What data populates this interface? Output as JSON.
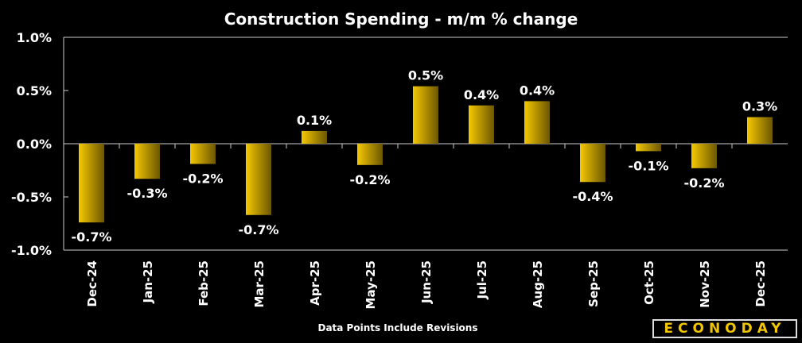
{
  "chart_data": {
    "type": "bar",
    "title": "Construction Spending - m/m % change",
    "xlabel": "",
    "ylabel": "",
    "categories": [
      "Dec-24",
      "Jan-25",
      "Feb-25",
      "Mar-25",
      "Apr-25",
      "May-25",
      "Jun-25",
      "Jul-25",
      "Aug-25",
      "Sep-25",
      "Oct-25",
      "Nov-25",
      "Dec-25"
    ],
    "values": [
      -0.74,
      -0.33,
      -0.19,
      -0.67,
      0.12,
      -0.2,
      0.54,
      0.36,
      0.4,
      -0.36,
      -0.07,
      -0.23,
      0.25
    ],
    "data_labels": [
      "-0.7%",
      "-0.3%",
      "-0.2%",
      "-0.7%",
      "0.1%",
      "-0.2%",
      "0.5%",
      "0.4%",
      "0.4%",
      "-0.4%",
      "-0.1%",
      "-0.2%",
      "0.3%"
    ],
    "ylim": [
      -1.0,
      1.0
    ],
    "yticks": [
      "1.0%",
      "0.5%",
      "0.0%",
      "-0.5%",
      "-1.0%"
    ],
    "ytick_values": [
      1.0,
      0.5,
      0.0,
      -0.5,
      -1.0
    ],
    "grid": false,
    "legend": "none",
    "bar_color": "#f5c800",
    "bar_color_dark": "#6b5600",
    "background": "#000000"
  },
  "footnote": "Data Points Include Revisions",
  "logo": "ECONODAY"
}
